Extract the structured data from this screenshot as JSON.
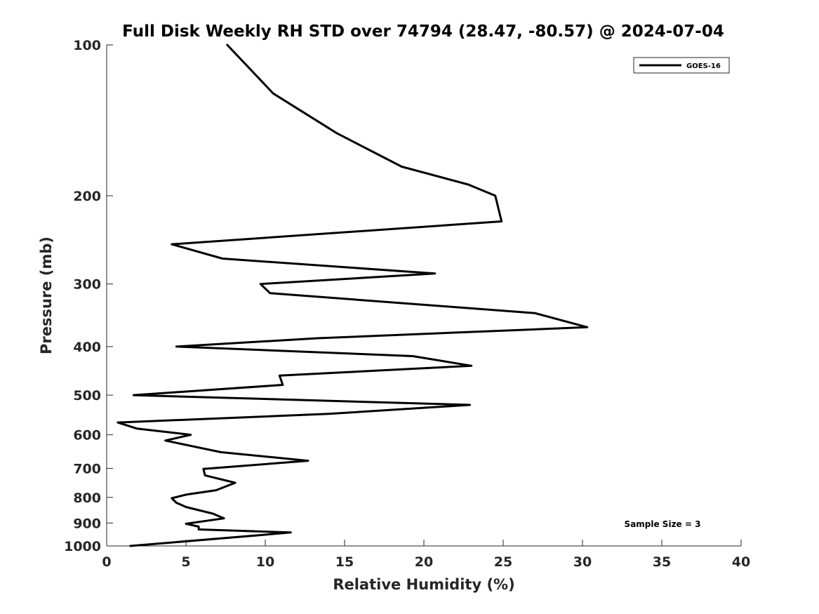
{
  "chart_data": {
    "type": "line",
    "title": "Full Disk Weekly RH STD over 74794 (28.47, -80.57) @ 2024-07-04",
    "xlabel": "Relative Humidity (%)",
    "ylabel": "Pressure (mb)",
    "xlim": [
      0,
      40
    ],
    "ylim": [
      100,
      1000
    ],
    "y_scale": "log",
    "y_reversed": true,
    "x_ticks": [
      "0",
      "5",
      "10",
      "15",
      "20",
      "25",
      "30",
      "35",
      "40"
    ],
    "x_tick_values": [
      0,
      5,
      10,
      15,
      20,
      25,
      30,
      35,
      40
    ],
    "y_ticks": [
      "100",
      "200",
      "300",
      "400",
      "500",
      "600",
      "700",
      "800",
      "900",
      "1000"
    ],
    "y_tick_values": [
      100,
      200,
      300,
      400,
      500,
      600,
      700,
      800,
      900,
      1000
    ],
    "grid": false,
    "legend_position": "top-right",
    "annotation": "Sample Size = 3",
    "series": [
      {
        "name": "GOES-16",
        "color": "#000000",
        "points": [
          [
            7.6,
            100
          ],
          [
            10.5,
            125
          ],
          [
            14.5,
            150
          ],
          [
            18.6,
            175
          ],
          [
            22.8,
            190
          ],
          [
            24.5,
            200
          ],
          [
            24.9,
            225
          ],
          [
            4.1,
            250
          ],
          [
            7.3,
            267
          ],
          [
            20.7,
            286
          ],
          [
            9.7,
            300
          ],
          [
            10.3,
            313
          ],
          [
            27.0,
            343
          ],
          [
            30.3,
            366
          ],
          [
            13.3,
            385
          ],
          [
            4.4,
            400
          ],
          [
            19.3,
            418
          ],
          [
            23.0,
            437
          ],
          [
            10.9,
            457
          ],
          [
            11.1,
            477
          ],
          [
            1.7,
            500
          ],
          [
            22.9,
            523
          ],
          [
            14.0,
            545
          ],
          [
            0.7,
            567
          ],
          [
            1.9,
            583
          ],
          [
            5.3,
            600
          ],
          [
            3.7,
            616
          ],
          [
            7.2,
            650
          ],
          [
            12.7,
            676
          ],
          [
            6.1,
            702
          ],
          [
            6.2,
            723
          ],
          [
            8.1,
            748
          ],
          [
            6.9,
            774
          ],
          [
            5.0,
            790
          ],
          [
            4.1,
            803
          ],
          [
            4.4,
            820
          ],
          [
            5.0,
            836
          ],
          [
            6.7,
            862
          ],
          [
            7.4,
            881
          ],
          [
            5.0,
            903
          ],
          [
            5.8,
            915
          ],
          [
            5.8,
            927
          ],
          [
            11.6,
            940
          ],
          [
            9.6,
            952
          ],
          [
            1.5,
            1000
          ]
        ]
      }
    ]
  }
}
